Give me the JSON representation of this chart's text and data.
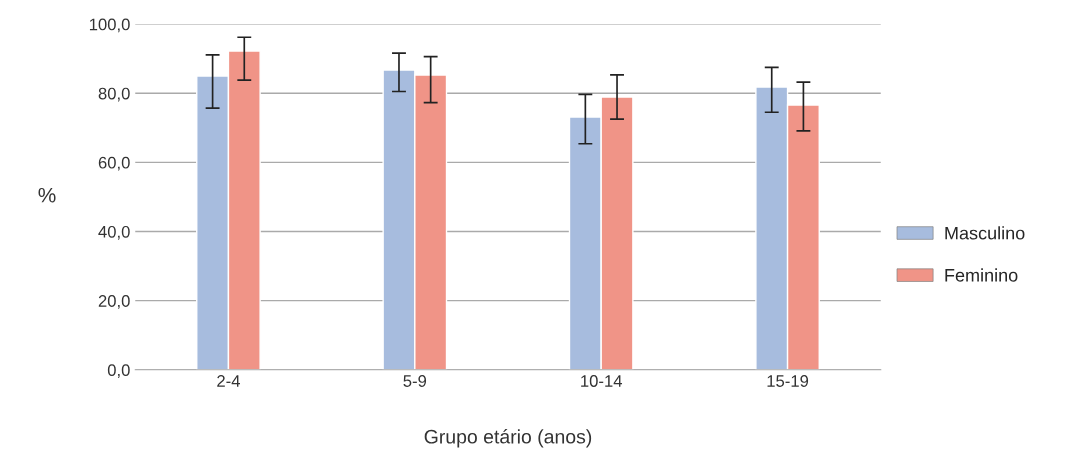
{
  "chart_data": {
    "type": "bar",
    "xlabel": "Grupo etário (anos)",
    "ylabel": "%",
    "categories": [
      "2-4",
      "5-9",
      "10-14",
      "15-19"
    ],
    "series": [
      {
        "name": "Masculino",
        "color": "#a7bcde",
        "values": [
          85.0,
          86.7,
          73.1,
          81.8
        ],
        "errors": [
          [
            75.7,
            91.1
          ],
          [
            80.5,
            91.6
          ],
          [
            65.4,
            79.7
          ],
          [
            74.5,
            87.5
          ]
        ]
      },
      {
        "name": "Feminino",
        "color": "#f09487",
        "values": [
          92.2,
          85.3,
          78.9,
          76.6
        ],
        "errors": [
          [
            83.8,
            96.2
          ],
          [
            77.3,
            90.6
          ],
          [
            72.5,
            85.3
          ],
          [
            69.1,
            83.2
          ]
        ]
      }
    ],
    "ylim": [
      0,
      100
    ],
    "yticks": [
      {
        "value": 0,
        "label": "0,0"
      },
      {
        "value": 20,
        "label": "20,0"
      },
      {
        "value": 40,
        "label": "40,0"
      },
      {
        "value": 60,
        "label": "60,0"
      },
      {
        "value": 80,
        "label": "80,0"
      },
      {
        "value": 100,
        "label": "100,0"
      }
    ],
    "grid": "y",
    "legend": "right"
  }
}
